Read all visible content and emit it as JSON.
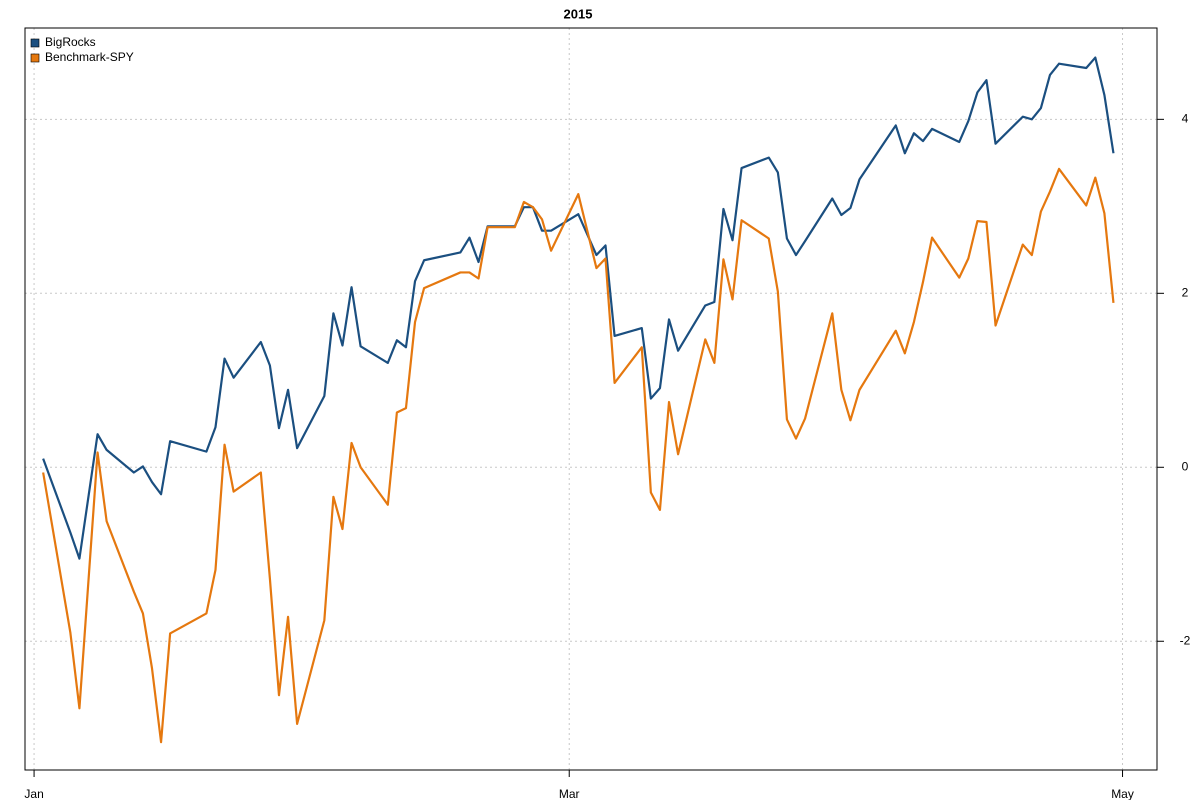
{
  "chart_data": {
    "type": "line",
    "title": "2015",
    "x": [
      1,
      4,
      5,
      7,
      8,
      11,
      12,
      13,
      14,
      15,
      19,
      20,
      21,
      22,
      25,
      26,
      27,
      28,
      29,
      32,
      33,
      34,
      35,
      36,
      39,
      40,
      41,
      42,
      43,
      47,
      48,
      49,
      50,
      53,
      54,
      55,
      56,
      57,
      60,
      62,
      63,
      64,
      67,
      68,
      69,
      70,
      71,
      74,
      75,
      76,
      77,
      78,
      81,
      82,
      83,
      84,
      85,
      88,
      89,
      90,
      91,
      95,
      96,
      97,
      98,
      99,
      102,
      103,
      104,
      105,
      106,
      109,
      110,
      111,
      112,
      113,
      116,
      117,
      118,
      119
    ],
    "series": [
      {
        "name": "BigRocks",
        "color": "#1b4f80",
        "values": [
          0.1,
          -0.75,
          -1.05,
          0.38,
          0.2,
          -0.06,
          0.01,
          -0.17,
          -0.31,
          0.3,
          0.18,
          0.46,
          1.25,
          1.03,
          1.44,
          1.17,
          0.45,
          0.89,
          0.22,
          0.82,
          1.77,
          1.4,
          2.07,
          1.39,
          1.2,
          1.46,
          1.38,
          2.14,
          2.38,
          2.47,
          2.64,
          2.36,
          2.77,
          2.77,
          2.99,
          2.99,
          2.72,
          2.72,
          2.91,
          2.44,
          2.55,
          1.51,
          1.6,
          0.79,
          0.91,
          1.7,
          1.34,
          1.86,
          1.9,
          2.97,
          2.61,
          3.44,
          3.56,
          3.39,
          2.63,
          2.44,
          2.6,
          3.09,
          2.9,
          2.98,
          3.31,
          3.93,
          3.61,
          3.84,
          3.75,
          3.89,
          3.74,
          3.98,
          4.31,
          4.45,
          3.72,
          4.03,
          4.0,
          4.13,
          4.51,
          4.64,
          4.59,
          4.71,
          4.28,
          3.61
        ]
      },
      {
        "name": "Benchmark-SPY",
        "color": "#e5780f",
        "values": [
          -0.06,
          -1.9,
          -2.77,
          0.17,
          -0.62,
          -1.43,
          -1.68,
          -2.31,
          -3.16,
          -1.91,
          -1.68,
          -1.18,
          0.26,
          -0.28,
          -0.06,
          -1.28,
          -2.62,
          -1.72,
          -2.95,
          -1.76,
          -0.34,
          -0.71,
          0.28,
          0.0,
          -0.43,
          0.63,
          0.68,
          1.67,
          2.06,
          2.24,
          2.24,
          2.17,
          2.76,
          2.76,
          3.05,
          2.99,
          2.85,
          2.49,
          3.14,
          2.29,
          2.4,
          0.97,
          1.38,
          -0.29,
          -0.49,
          0.75,
          0.15,
          1.47,
          1.2,
          2.39,
          1.93,
          2.84,
          2.63,
          2.02,
          0.55,
          0.33,
          0.56,
          1.77,
          0.89,
          0.54,
          0.89,
          1.57,
          1.31,
          1.67,
          2.13,
          2.64,
          2.18,
          2.4,
          2.83,
          2.82,
          1.63,
          2.56,
          2.44,
          2.94,
          3.17,
          3.43,
          3.01,
          3.33,
          2.92,
          1.89
        ]
      }
    ],
    "xlim": [
      -1,
      123.8
    ],
    "xticks": [
      {
        "value": 0,
        "label": "Jan"
      },
      {
        "value": 59,
        "label": "Mar"
      },
      {
        "value": 120,
        "label": "May"
      }
    ],
    "ylim": [
      -3.48,
      5.05
    ],
    "yticks": [
      -2,
      0,
      2,
      4
    ],
    "grid": true,
    "legend": "top-left"
  }
}
